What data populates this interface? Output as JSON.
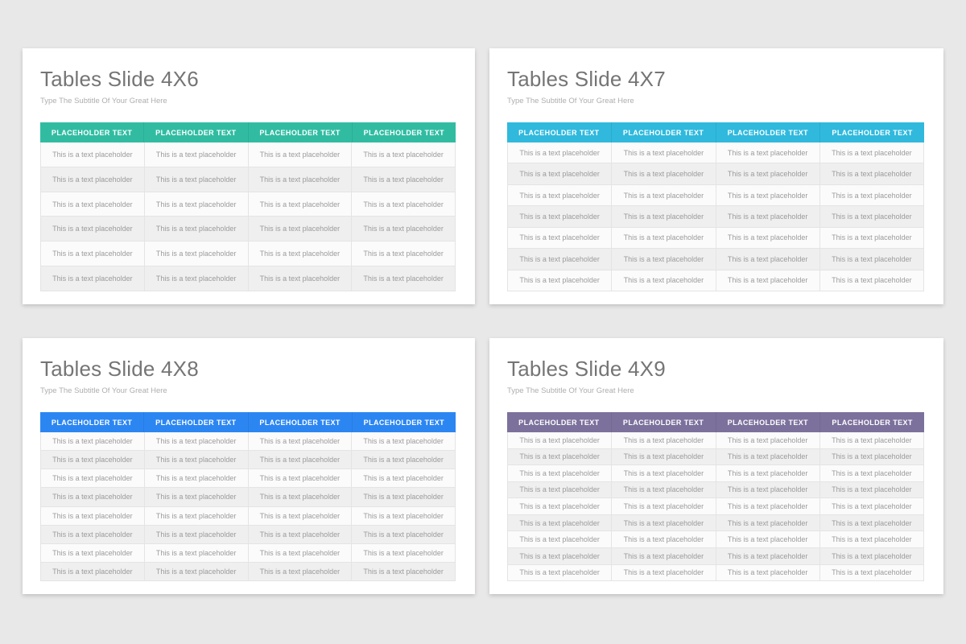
{
  "page": {
    "background_color": "#e9e8e8"
  },
  "slides": [
    {
      "title": "Tables Slide 4X6",
      "subtitle": "Type The Subtitle Of Your Great Here",
      "header_color": "#31bca2",
      "headers": [
        "PLACEHOLDER TEXT",
        "PLACEHOLDER TEXT",
        "PLACEHOLDER TEXT",
        "PLACEHOLDER TEXT"
      ],
      "rows": [
        [
          "This is a text placeholder",
          "This is a text placeholder",
          "This is a text placeholder",
          "This is a text placeholder"
        ],
        [
          "This is a text placeholder",
          "This is a text placeholder",
          "This is a text placeholder",
          "This is a text placeholder"
        ],
        [
          "This is a text placeholder",
          "This is a text placeholder",
          "This is a text placeholder",
          "This is a text placeholder"
        ],
        [
          "This is a text placeholder",
          "This is a text placeholder",
          "This is a text placeholder",
          "This is a text placeholder"
        ],
        [
          "This is a text placeholder",
          "This is a text placeholder",
          "This is a text placeholder",
          "This is a text placeholder"
        ],
        [
          "This is a text placeholder",
          "This is a text placeholder",
          "This is a text placeholder",
          "This is a text placeholder"
        ]
      ]
    },
    {
      "title": "Tables Slide 4X7",
      "subtitle": "Type The Subtitle Of Your Great Here",
      "header_color": "#30b9dd",
      "headers": [
        "PLACEHOLDER TEXT",
        "PLACEHOLDER TEXT",
        "PLACEHOLDER TEXT",
        "PLACEHOLDER TEXT"
      ],
      "rows": [
        [
          "This is a text placeholder",
          "This is a text placeholder",
          "This is a text placeholder",
          "This is a text placeholder"
        ],
        [
          "This is a text placeholder",
          "This is a text placeholder",
          "This is a text placeholder",
          "This is a text placeholder"
        ],
        [
          "This is a text placeholder",
          "This is a text placeholder",
          "This is a text placeholder",
          "This is a text placeholder"
        ],
        [
          "This is a text placeholder",
          "This is a text placeholder",
          "This is a text placeholder",
          "This is a text placeholder"
        ],
        [
          "This is a text placeholder",
          "This is a text placeholder",
          "This is a text placeholder",
          "This is a text placeholder"
        ],
        [
          "This is a text placeholder",
          "This is a text placeholder",
          "This is a text placeholder",
          "This is a text placeholder"
        ],
        [
          "This is a text placeholder",
          "This is a text placeholder",
          "This is a text placeholder",
          "This is a text placeholder"
        ]
      ]
    },
    {
      "title": "Tables Slide 4X8",
      "subtitle": "Type The Subtitle Of Your Great Here",
      "header_color": "#2c86f2",
      "headers": [
        "PLACEHOLDER TEXT",
        "PLACEHOLDER TEXT",
        "PLACEHOLDER TEXT",
        "PLACEHOLDER TEXT"
      ],
      "rows": [
        [
          "This is a text placeholder",
          "This is a text placeholder",
          "This is a text placeholder",
          "This is a text placeholder"
        ],
        [
          "This is a text placeholder",
          "This is a text placeholder",
          "This is a text placeholder",
          "This is a text placeholder"
        ],
        [
          "This is a text placeholder",
          "This is a text placeholder",
          "This is a text placeholder",
          "This is a text placeholder"
        ],
        [
          "This is a text placeholder",
          "This is a text placeholder",
          "This is a text placeholder",
          "This is a text placeholder"
        ],
        [
          "This is a text placeholder",
          "This is a text placeholder",
          "This is a text placeholder",
          "This is a text placeholder"
        ],
        [
          "This is a text placeholder",
          "This is a text placeholder",
          "This is a text placeholder",
          "This is a text placeholder"
        ],
        [
          "This is a text placeholder",
          "This is a text placeholder",
          "This is a text placeholder",
          "This is a text placeholder"
        ],
        [
          "This is a text placeholder",
          "This is a text placeholder",
          "This is a text placeholder",
          "This is a text placeholder"
        ]
      ]
    },
    {
      "title": "Tables Slide 4X9",
      "subtitle": "Type The Subtitle Of Your Great Here",
      "header_color": "#7c719c",
      "headers": [
        "PLACEHOLDER TEXT",
        "PLACEHOLDER TEXT",
        "PLACEHOLDER TEXT",
        "PLACEHOLDER TEXT"
      ],
      "rows": [
        [
          "This is a text placeholder",
          "This is a text placeholder",
          "This is a text placeholder",
          "This is a text placeholder"
        ],
        [
          "This is a text placeholder",
          "This is a text placeholder",
          "This is a text placeholder",
          "This is a text placeholder"
        ],
        [
          "This is a text placeholder",
          "This is a text placeholder",
          "This is a text placeholder",
          "This is a text placeholder"
        ],
        [
          "This is a text placeholder",
          "This is a text placeholder",
          "This is a text placeholder",
          "This is a text placeholder"
        ],
        [
          "This is a text placeholder",
          "This is a text placeholder",
          "This is a text placeholder",
          "This is a text placeholder"
        ],
        [
          "This is a text placeholder",
          "This is a text placeholder",
          "This is a text placeholder",
          "This is a text placeholder"
        ],
        [
          "This is a text placeholder",
          "This is a text placeholder",
          "This is a text placeholder",
          "This is a text placeholder"
        ],
        [
          "This is a text placeholder",
          "This is a text placeholder",
          "This is a text placeholder",
          "This is a text placeholder"
        ],
        [
          "This is a text placeholder",
          "This is a text placeholder",
          "This is a text placeholder",
          "This is a text placeholder"
        ]
      ]
    }
  ]
}
